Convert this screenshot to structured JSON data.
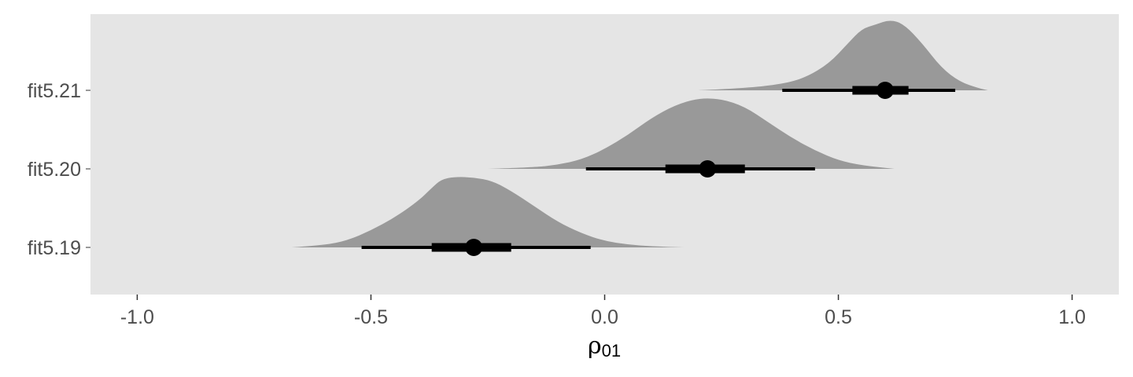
{
  "chart_data": {
    "type": "halfeye",
    "xlabel": {
      "symbol": "ρ",
      "subscript": "01"
    },
    "xlim": [
      -1.1,
      1.1
    ],
    "xticks": [
      -1.0,
      -0.5,
      0.0,
      0.5,
      1.0
    ],
    "xtick_labels": [
      "-1.0",
      "-0.5",
      "0.0",
      "0.5",
      "1.0"
    ],
    "grid": false,
    "panel_color": "#e5e5e5",
    "density_color": "#999999",
    "interval_color": "#000000",
    "series": [
      {
        "name": "fit5.19",
        "median": -0.28,
        "interval_66": [
          -0.37,
          -0.2
        ],
        "interval_95": [
          -0.52,
          -0.03
        ],
        "density_range": [
          -0.67,
          0.17
        ],
        "density": [
          [
            -0.67,
            0.0
          ],
          [
            -0.6,
            0.03
          ],
          [
            -0.55,
            0.1
          ],
          [
            -0.5,
            0.24
          ],
          [
            -0.45,
            0.42
          ],
          [
            -0.4,
            0.65
          ],
          [
            -0.37,
            0.84
          ],
          [
            -0.35,
            0.96
          ],
          [
            -0.32,
            1.0
          ],
          [
            -0.28,
            0.99
          ],
          [
            -0.24,
            0.94
          ],
          [
            -0.2,
            0.8
          ],
          [
            -0.15,
            0.58
          ],
          [
            -0.1,
            0.36
          ],
          [
            -0.05,
            0.2
          ],
          [
            0.0,
            0.09
          ],
          [
            0.05,
            0.04
          ],
          [
            0.1,
            0.015
          ],
          [
            0.17,
            0.0
          ]
        ]
      },
      {
        "name": "fit5.20",
        "median": 0.22,
        "interval_66": [
          0.13,
          0.3
        ],
        "interval_95": [
          -0.04,
          0.45
        ],
        "density_range": [
          -0.25,
          0.62
        ],
        "density": [
          [
            -0.25,
            0.0
          ],
          [
            -0.15,
            0.02
          ],
          [
            -0.1,
            0.06
          ],
          [
            -0.05,
            0.13
          ],
          [
            0.0,
            0.28
          ],
          [
            0.05,
            0.48
          ],
          [
            0.1,
            0.72
          ],
          [
            0.15,
            0.9
          ],
          [
            0.2,
            1.0
          ],
          [
            0.25,
            0.99
          ],
          [
            0.3,
            0.88
          ],
          [
            0.35,
            0.66
          ],
          [
            0.4,
            0.44
          ],
          [
            0.45,
            0.26
          ],
          [
            0.5,
            0.12
          ],
          [
            0.55,
            0.05
          ],
          [
            0.62,
            0.0
          ]
        ]
      },
      {
        "name": "fit5.21",
        "median": 0.6,
        "interval_66": [
          0.53,
          0.65
        ],
        "interval_95": [
          0.38,
          0.75
        ],
        "density_range": [
          0.2,
          0.82
        ],
        "density": [
          [
            0.2,
            0.0
          ],
          [
            0.3,
            0.03
          ],
          [
            0.38,
            0.09
          ],
          [
            0.43,
            0.18
          ],
          [
            0.48,
            0.38
          ],
          [
            0.52,
            0.66
          ],
          [
            0.55,
            0.87
          ],
          [
            0.58,
            0.93
          ],
          [
            0.61,
            1.0
          ],
          [
            0.64,
            0.94
          ],
          [
            0.68,
            0.66
          ],
          [
            0.72,
            0.32
          ],
          [
            0.76,
            0.12
          ],
          [
            0.8,
            0.03
          ],
          [
            0.82,
            0.0
          ]
        ]
      }
    ]
  }
}
